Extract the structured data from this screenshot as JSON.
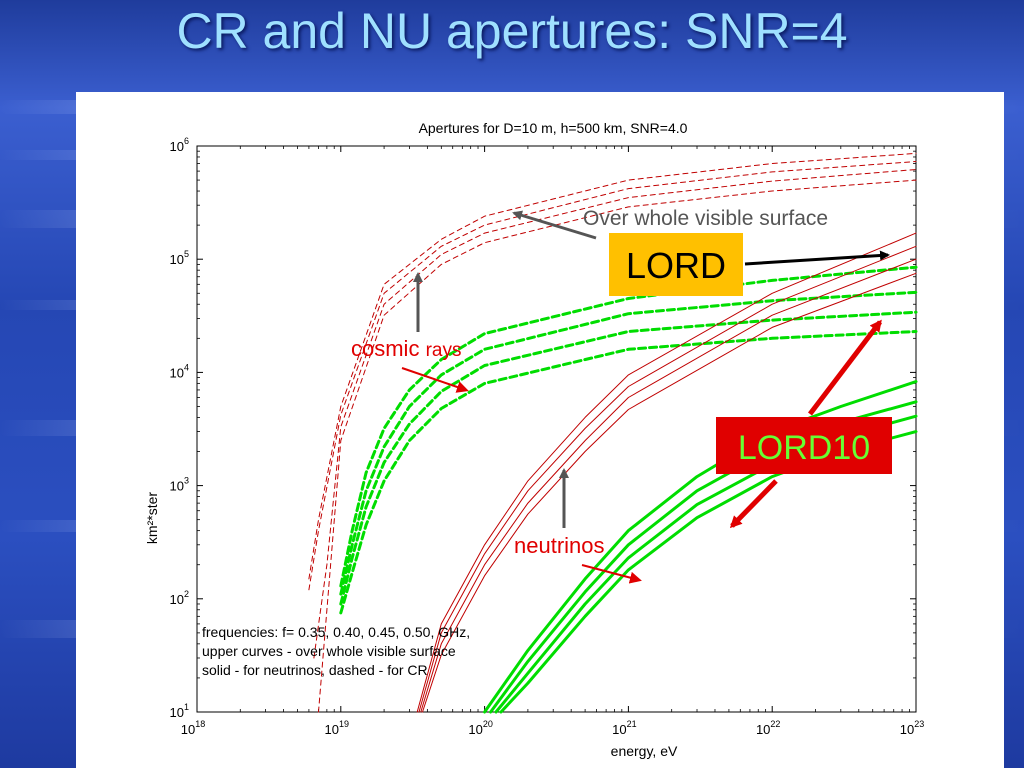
{
  "slide": {
    "title": "CR and NU apertures: SNR=4"
  },
  "chart_data": {
    "type": "line",
    "title": "Apertures for D=10 m, h=500 km, SNR=4.0",
    "xlabel": "energy, eV",
    "ylabel": "km²*ster",
    "x_scale": "log",
    "y_scale": "log",
    "xlim": [
      1e+18,
      1e+23
    ],
    "ylim": [
      10,
      1000000
    ],
    "grid": false,
    "x_ticks": [
      {
        "base": "10",
        "exp": "18"
      },
      {
        "base": "10",
        "exp": "19"
      },
      {
        "base": "10",
        "exp": "20"
      },
      {
        "base": "10",
        "exp": "21"
      },
      {
        "base": "10",
        "exp": "22"
      },
      {
        "base": "10",
        "exp": "23"
      }
    ],
    "y_ticks": [
      {
        "base": "10",
        "exp": "1"
      },
      {
        "base": "10",
        "exp": "2"
      },
      {
        "base": "10",
        "exp": "3"
      },
      {
        "base": "10",
        "exp": "4"
      },
      {
        "base": "10",
        "exp": "5"
      },
      {
        "base": "10",
        "exp": "6"
      }
    ],
    "legend_text": [
      "frequencies: f= 0.35, 0.40, 0.45, 0.50, GHz,",
      "upper curves - over whole visible surface",
      "solid - for neutrinos, dashed - for CR"
    ],
    "series": [
      {
        "color": "#c00000",
        "style": "dashed",
        "width": 1,
        "x": [
          6e+18,
          7e+18,
          1e+19,
          2e+19,
          5e+19,
          1e+20,
          1e+21,
          1e+22,
          1e+23
        ],
        "y": [
          150,
          500,
          5000,
          60000,
          150000,
          240000,
          500000,
          700000,
          860000
        ]
      },
      {
        "color": "#c00000",
        "style": "dashed",
        "width": 1,
        "x": [
          6e+18,
          7e+18,
          1e+19,
          2e+19,
          5e+19,
          1e+20,
          1e+21,
          1e+22,
          1e+23
        ],
        "y": [
          120,
          400,
          4200,
          50000,
          130000,
          200000,
          420000,
          590000,
          730000
        ]
      },
      {
        "color": "#c00000",
        "style": "dashed",
        "width": 1,
        "x": [
          6.5e+18,
          8e+18,
          1e+19,
          2e+19,
          5e+19,
          1e+20,
          1e+21,
          1e+22,
          1e+23
        ],
        "y": [
          30,
          200,
          3300,
          40000,
          110000,
          170000,
          350000,
          490000,
          620000
        ]
      },
      {
        "color": "#c00000",
        "style": "dashed",
        "width": 1,
        "x": [
          7e+18,
          8e+18,
          1e+19,
          2e+19,
          5e+19,
          1e+20,
          1e+21,
          1e+22,
          1e+23
        ],
        "y": [
          10,
          80,
          2500,
          32000,
          90000,
          140000,
          290000,
          400000,
          500000
        ]
      },
      {
        "color": "#00dd00",
        "style": "dashed",
        "width": 3,
        "x": [
          1e+19,
          1.2e+19,
          1.5e+19,
          2e+19,
          3e+19,
          5e+19,
          1e+20,
          1e+21,
          1e+22,
          1e+23
        ],
        "y": [
          130,
          400,
          1300,
          3200,
          7000,
          13000,
          22000,
          45000,
          65000,
          85000
        ]
      },
      {
        "color": "#00dd00",
        "style": "dashed",
        "width": 3,
        "x": [
          1e+19,
          1.2e+19,
          1.5e+19,
          2e+19,
          3e+19,
          5e+19,
          1e+20,
          1e+21,
          1e+22,
          1e+23
        ],
        "y": [
          110,
          300,
          900,
          2200,
          5000,
          9500,
          16000,
          33000,
          43000,
          51000
        ]
      },
      {
        "color": "#00dd00",
        "style": "dashed",
        "width": 3,
        "x": [
          1e+19,
          1.2e+19,
          1.5e+19,
          2e+19,
          3e+19,
          5e+19,
          1e+20,
          1e+21,
          1e+22,
          1e+23
        ],
        "y": [
          90,
          230,
          650,
          1600,
          3500,
          6800,
          11500,
          23000,
          29000,
          34000
        ]
      },
      {
        "color": "#00dd00",
        "style": "dashed",
        "width": 3,
        "x": [
          1e+19,
          1.2e+19,
          1.5e+19,
          2e+19,
          3e+19,
          5e+19,
          1e+20,
          1e+21,
          1e+22,
          1e+23
        ],
        "y": [
          75,
          170,
          450,
          1100,
          2500,
          4800,
          8000,
          16000,
          20000,
          23000
        ]
      },
      {
        "color": "#c00000",
        "style": "solid",
        "width": 1,
        "x": [
          3.4e+19,
          5e+19,
          1e+20,
          2e+20,
          5e+20,
          1e+21,
          1e+22,
          1e+23
        ],
        "y": [
          10,
          60,
          300,
          1100,
          4000,
          9500,
          50000,
          170000
        ]
      },
      {
        "color": "#c00000",
        "style": "solid",
        "width": 1,
        "x": [
          3.5e+19,
          5e+19,
          1e+20,
          2e+20,
          5e+20,
          1e+21,
          1e+22,
          1e+23
        ],
        "y": [
          10,
          50,
          250,
          900,
          3200,
          7500,
          40000,
          130000
        ]
      },
      {
        "color": "#c00000",
        "style": "solid",
        "width": 1,
        "x": [
          3.6e+19,
          5e+19,
          1e+20,
          2e+20,
          5e+20,
          1e+21,
          1e+22,
          1e+23
        ],
        "y": [
          10,
          40,
          200,
          700,
          2500,
          6000,
          32000,
          100000
        ]
      },
      {
        "color": "#c00000",
        "style": "solid",
        "width": 1,
        "x": [
          3.7e+19,
          5e+19,
          1e+20,
          2e+20,
          5e+20,
          1e+21,
          1e+22,
          1e+23
        ],
        "y": [
          10,
          32,
          160,
          560,
          2000,
          4700,
          25000,
          75000
        ]
      },
      {
        "color": "#00dd00",
        "style": "solid",
        "width": 3,
        "x": [
          1e+20,
          2e+20,
          5e+20,
          1e+21,
          3e+21,
          1e+22,
          3e+22,
          1e+23
        ],
        "y": [
          10,
          35,
          150,
          400,
          1200,
          3000,
          5000,
          8300
        ]
      },
      {
        "color": "#00dd00",
        "style": "solid",
        "width": 3,
        "x": [
          1.1e+20,
          2e+20,
          5e+20,
          1e+21,
          3e+21,
          1e+22,
          3e+22,
          1e+23
        ],
        "y": [
          10,
          28,
          115,
          300,
          900,
          2100,
          3600,
          5500
        ]
      },
      {
        "color": "#00dd00",
        "style": "solid",
        "width": 3,
        "x": [
          1.2e+20,
          2e+20,
          5e+20,
          1e+21,
          3e+21,
          1e+22,
          3e+22,
          1e+23
        ],
        "y": [
          10,
          22,
          90,
          230,
          680,
          1550,
          2700,
          4100
        ]
      },
      {
        "color": "#00dd00",
        "style": "solid",
        "width": 3,
        "x": [
          1.3e+20,
          2e+20,
          5e+20,
          1e+21,
          3e+21,
          1e+22,
          3e+22,
          1e+23
        ],
        "y": [
          10,
          18,
          70,
          180,
          520,
          1200,
          2000,
          3000
        ]
      }
    ],
    "annotations": [
      {
        "text": "Over whole visible surface",
        "color": "#555555"
      },
      {
        "text": "LORD",
        "color": "#000000",
        "bg": "#ffc000"
      },
      {
        "text": "cosmic",
        "color": "#e00000"
      },
      {
        "text": "rays",
        "color": "#e00000"
      },
      {
        "text": "LORD10",
        "color": "#66ff33",
        "bg": "#e00000"
      },
      {
        "text": "neutrinos",
        "color": "#e00000"
      }
    ]
  }
}
